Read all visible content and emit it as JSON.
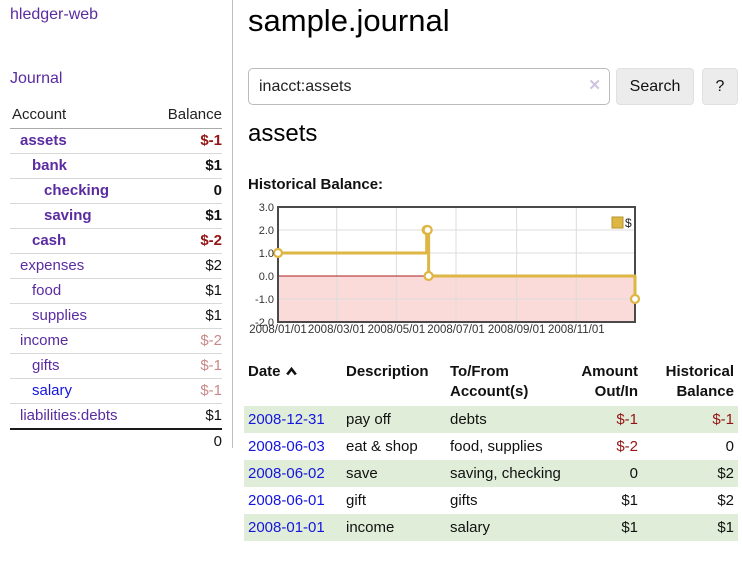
{
  "sidebar": {
    "app_title": "hledger-web",
    "nav": {
      "journal_label": "Journal"
    },
    "accounts_table": {
      "headers": {
        "account": "Account",
        "balance": "Balance"
      },
      "rows": [
        {
          "name": "assets",
          "balance": "$-1",
          "indent": 1,
          "bold": true,
          "balance_style": "negative-strong"
        },
        {
          "name": "bank",
          "balance": "$1",
          "indent": 2,
          "bold": true,
          "balance_style": "normal"
        },
        {
          "name": "checking",
          "balance": "0",
          "indent": 3,
          "bold": true,
          "balance_style": "normal"
        },
        {
          "name": "saving",
          "balance": "$1",
          "indent": 3,
          "bold": true,
          "balance_style": "normal"
        },
        {
          "name": "cash",
          "balance": "$-2",
          "indent": 2,
          "bold": true,
          "balance_style": "negative-strong"
        },
        {
          "name": "expenses",
          "balance": "$2",
          "indent": 1,
          "bold": false,
          "balance_style": "normal"
        },
        {
          "name": "food",
          "balance": "$1",
          "indent": 2,
          "bold": false,
          "balance_style": "normal"
        },
        {
          "name": "supplies",
          "balance": "$1",
          "indent": 2,
          "bold": false,
          "balance_style": "normal"
        },
        {
          "name": "income",
          "balance": "$-2",
          "indent": 1,
          "bold": false,
          "balance_style": "negative-soft"
        },
        {
          "name": "gifts",
          "balance": "$-1",
          "indent": 2,
          "bold": false,
          "balance_style": "negative-soft"
        },
        {
          "name": "salary",
          "balance": "$-1",
          "indent": 2,
          "bold": false,
          "balance_style": "negative-soft",
          "link_color": "blue"
        },
        {
          "name": "liabilities:debts",
          "balance": "$1",
          "indent": 1,
          "bold": false,
          "balance_style": "normal"
        }
      ],
      "total": "0"
    }
  },
  "header": {
    "title": "sample.journal"
  },
  "search": {
    "value": "inacct:assets",
    "clear_icon": "✕",
    "button_label": "Search",
    "help_label": "?"
  },
  "account_page": {
    "title": "assets",
    "chart_label": "Historical Balance:"
  },
  "chart_data": {
    "type": "line",
    "step": true,
    "title": "Historical Balance:",
    "series": [
      {
        "name": "$",
        "color": "#ddb644",
        "points": [
          [
            "2008-01-01",
            1
          ],
          [
            "2008-06-01",
            2
          ],
          [
            "2008-06-02",
            2
          ],
          [
            "2008-06-03",
            0
          ],
          [
            "2008-12-31",
            -1
          ]
        ]
      }
    ],
    "ylim": [
      -2,
      3
    ],
    "yticks": [
      3,
      2,
      1,
      0,
      -1,
      -2
    ],
    "xticks": [
      "2008/01/01",
      "2008/03/01",
      "2008/05/01",
      "2008/07/01",
      "2008/09/01",
      "2008/11/01"
    ],
    "x_domain": [
      "2008-01-01",
      "2008-12-31"
    ],
    "grid": true,
    "legend": {
      "label": "$",
      "position": "top-right"
    },
    "negative_region_fill": "#fbdada",
    "zero_line_color": "#aa1e1e",
    "frame_color": "#4a4a4a"
  },
  "register_table": {
    "headers": {
      "date": "Date",
      "description": "Description",
      "accounts": "To/From Account(s)",
      "amount": "Amount Out/In",
      "balance": "Historical Balance"
    },
    "sort_icon": "caret-up",
    "rows": [
      {
        "date": "2008-12-31",
        "description": "pay off",
        "accounts": "debts",
        "amount": "$-1",
        "balance": "$-1",
        "amount_negative": true,
        "balance_negative": true,
        "shaded": true
      },
      {
        "date": "2008-06-03",
        "description": "eat & shop",
        "accounts": "food, supplies",
        "amount": "$-2",
        "balance": "0",
        "amount_negative": true,
        "balance_negative": false,
        "shaded": false
      },
      {
        "date": "2008-06-02",
        "description": "save",
        "accounts": "saving, checking",
        "amount": "0",
        "balance": "$2",
        "amount_negative": false,
        "balance_negative": false,
        "shaded": true
      },
      {
        "date": "2008-06-01",
        "description": "gift",
        "accounts": "gifts",
        "amount": "$1",
        "balance": "$2",
        "amount_negative": false,
        "balance_negative": false,
        "shaded": false
      },
      {
        "date": "2008-01-01",
        "description": "income",
        "accounts": "salary",
        "amount": "$1",
        "balance": "$1",
        "amount_negative": false,
        "balance_negative": false,
        "shaded": true
      }
    ]
  },
  "colors": {
    "link_purple": "#5a2ca0",
    "link_blue": "#1515dd",
    "negative_strong": "#951414",
    "negative_soft": "#c98989",
    "row_green": "#e0eed9",
    "chart_gold": "#ddb644",
    "chart_pink": "#fbdada",
    "zero_line": "#aa1e1e"
  }
}
